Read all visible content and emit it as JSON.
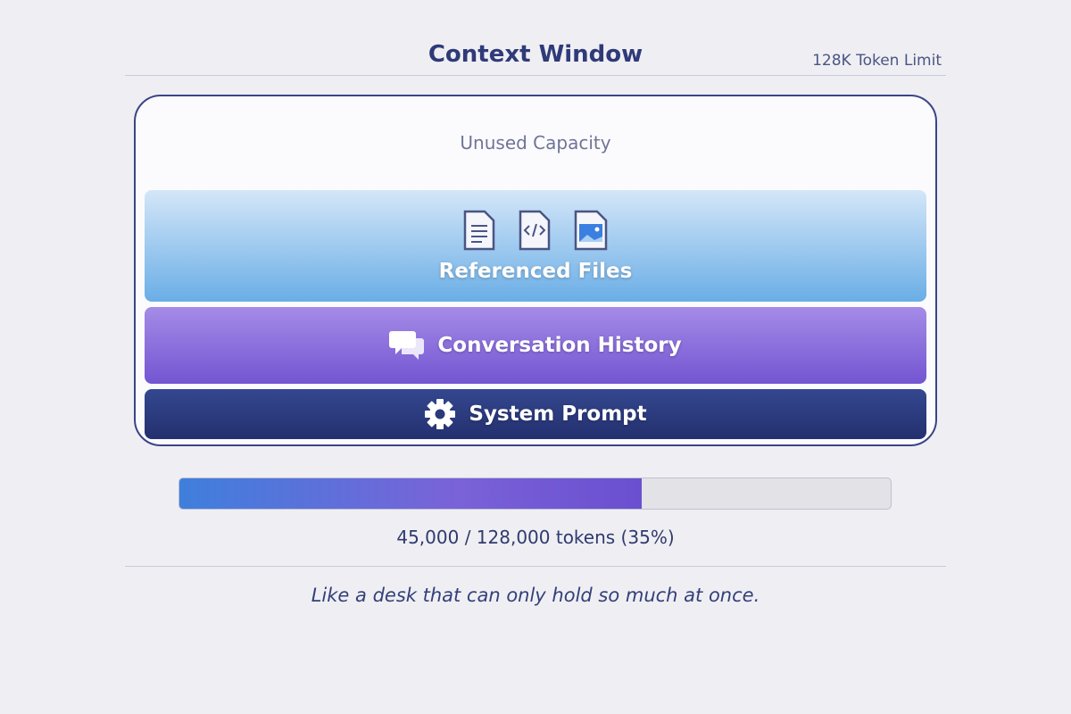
{
  "header": {
    "title": "Context Window",
    "limit": "128K Token Limit"
  },
  "window": {
    "unused_label": "Unused Capacity",
    "layers": [
      {
        "label": "Referenced Files",
        "icons": [
          "document-icon",
          "code-file-icon",
          "image-file-icon"
        ]
      },
      {
        "label": "Conversation History",
        "icon": "chat-bubbles-icon"
      },
      {
        "label": "System Prompt",
        "icon": "gear-icon"
      }
    ]
  },
  "usage": {
    "text": "45,000 / 128,000 tokens (35%)",
    "fill_fraction": 0.65
  },
  "caption": "Like a desk that can only hold so much at once.",
  "colors": {
    "accent": "#2f3a78",
    "files": "#6aaee6",
    "conversation": "#7355d2",
    "system": "#24306f"
  }
}
